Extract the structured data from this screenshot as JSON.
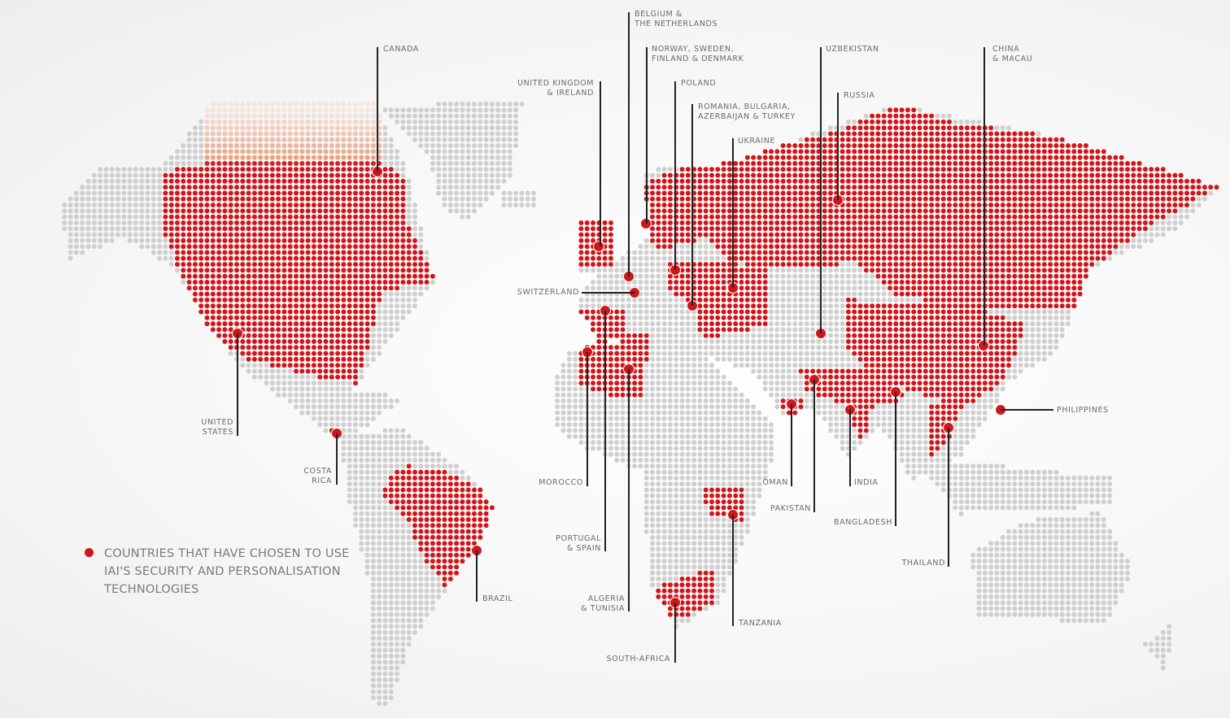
{
  "colors": {
    "highlight": "#d0161b",
    "land": "#cfcfcf",
    "fade": "#e8956c"
  },
  "legend": {
    "marker_icon": "red-dot",
    "text": "COUNTRIES THAT HAVE CHOSEN TO USE IAI'S SECURITY AND PERSONALISATION TECHNOLOGIES"
  },
  "countries": [
    {
      "label": "CANADA"
    },
    {
      "label": "BELGIUM &\nTHE NETHERLANDS"
    },
    {
      "label": "NORWAY, SWEDEN,\nFINLAND & DENMARK"
    },
    {
      "label": "UNITED KINGDOM\n& IRELAND"
    },
    {
      "label": "POLAND"
    },
    {
      "label": "ROMANIA, BULGARIA,\nAZERBAIJAN & TURKEY"
    },
    {
      "label": "UKRAINE"
    },
    {
      "label": "UZBEKISTAN"
    },
    {
      "label": "RUSSIA"
    },
    {
      "label": "CHINA\n& MACAU"
    },
    {
      "label": "SWITZERLAND"
    },
    {
      "label": "UNITED\nSTATES"
    },
    {
      "label": "COSTA\nRICA"
    },
    {
      "label": "BRAZIL"
    },
    {
      "label": "MOROCCO"
    },
    {
      "label": "PORTUGAL\n& SPAIN"
    },
    {
      "label": "ALGERIA\n& TUNISIA"
    },
    {
      "label": "SOUTH-AFRICA"
    },
    {
      "label": "TANZANIA"
    },
    {
      "label": "OMAN"
    },
    {
      "label": "PAKISTAN"
    },
    {
      "label": "INDIA"
    },
    {
      "label": "BANGLADESH"
    },
    {
      "label": "THAILAND"
    },
    {
      "label": "PHILIPPINES"
    }
  ]
}
